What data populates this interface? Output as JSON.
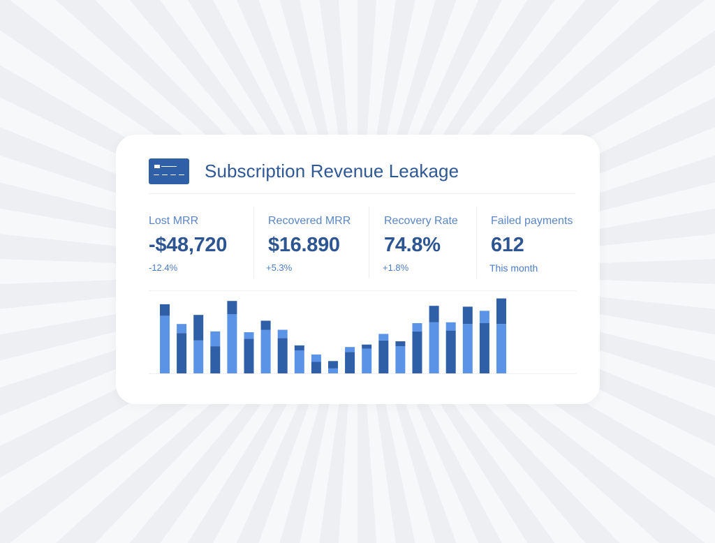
{
  "widget": {
    "title": "Subscription Revenue Leakage",
    "icon": "credit-card-icon"
  },
  "metrics": [
    {
      "label": "Lost MRR",
      "value": "-$48,720",
      "change": "-12.4%"
    },
    {
      "label": "Recovered MRR",
      "value": "$16.890",
      "change": "+5.3%"
    },
    {
      "label": "Recovery Rate",
      "value": "74.8%",
      "change": "+1.8%"
    },
    {
      "label": "Failed payments",
      "value": "612",
      "change": "This month"
    }
  ],
  "colors": {
    "dark_blue": "#2f5fa7",
    "light_blue": "#5b93e6",
    "title": "#2f5894",
    "label": "#5a86c5"
  },
  "chart_data": {
    "type": "bar",
    "stacked": true,
    "ylim": [
      0,
      100
    ],
    "grid": false,
    "legend": "none",
    "series": [
      {
        "color": "light",
        "values": [
          70,
          0,
          40,
          0,
          72,
          0,
          53,
          0,
          28,
          0,
          6,
          0,
          30,
          0,
          33,
          0,
          62,
          0,
          60,
          0,
          60
        ]
      },
      {
        "color": "dark",
        "values": [
          14,
          49,
          31,
          33,
          16,
          42,
          11,
          43,
          6,
          14,
          9,
          26,
          5,
          40,
          6,
          51,
          20,
          52,
          21,
          61,
          31
        ]
      },
      {
        "color": "light",
        "values": [
          0,
          11,
          0,
          18,
          0,
          8,
          0,
          10,
          0,
          9,
          0,
          6,
          0,
          8,
          0,
          10,
          0,
          10,
          0,
          15,
          0
        ]
      }
    ]
  }
}
